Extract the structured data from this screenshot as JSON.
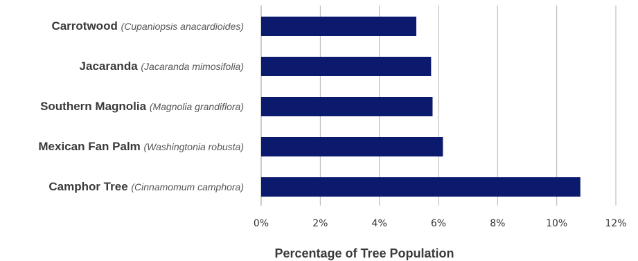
{
  "chart_data": {
    "type": "bar",
    "orientation": "horizontal",
    "categories": [
      {
        "name": "Carrotwood",
        "scientific": "(Cupaniopsis anacardioides)"
      },
      {
        "name": "Jacaranda",
        "scientific": "(Jacaranda mimosifolia)"
      },
      {
        "name": "Southern Magnolia",
        "scientific": "(Magnolia grandiflora)"
      },
      {
        "name": "Mexican Fan Palm",
        "scientific": "(Washingtonia robusta)"
      },
      {
        "name": "Camphor Tree",
        "scientific": "(Cinnamomum camphora)"
      }
    ],
    "values": [
      5.25,
      5.75,
      5.8,
      6.15,
      10.8
    ],
    "xlabel": "Percentage of Tree Population",
    "ylabel": "",
    "xlim": [
      0,
      12
    ],
    "ticks": [
      "0%",
      "2%",
      "4%",
      "6%",
      "8%",
      "10%",
      "12%"
    ],
    "grid": true,
    "bar_color": "#0c1a6e",
    "grid_color": "#b3b3b3"
  }
}
